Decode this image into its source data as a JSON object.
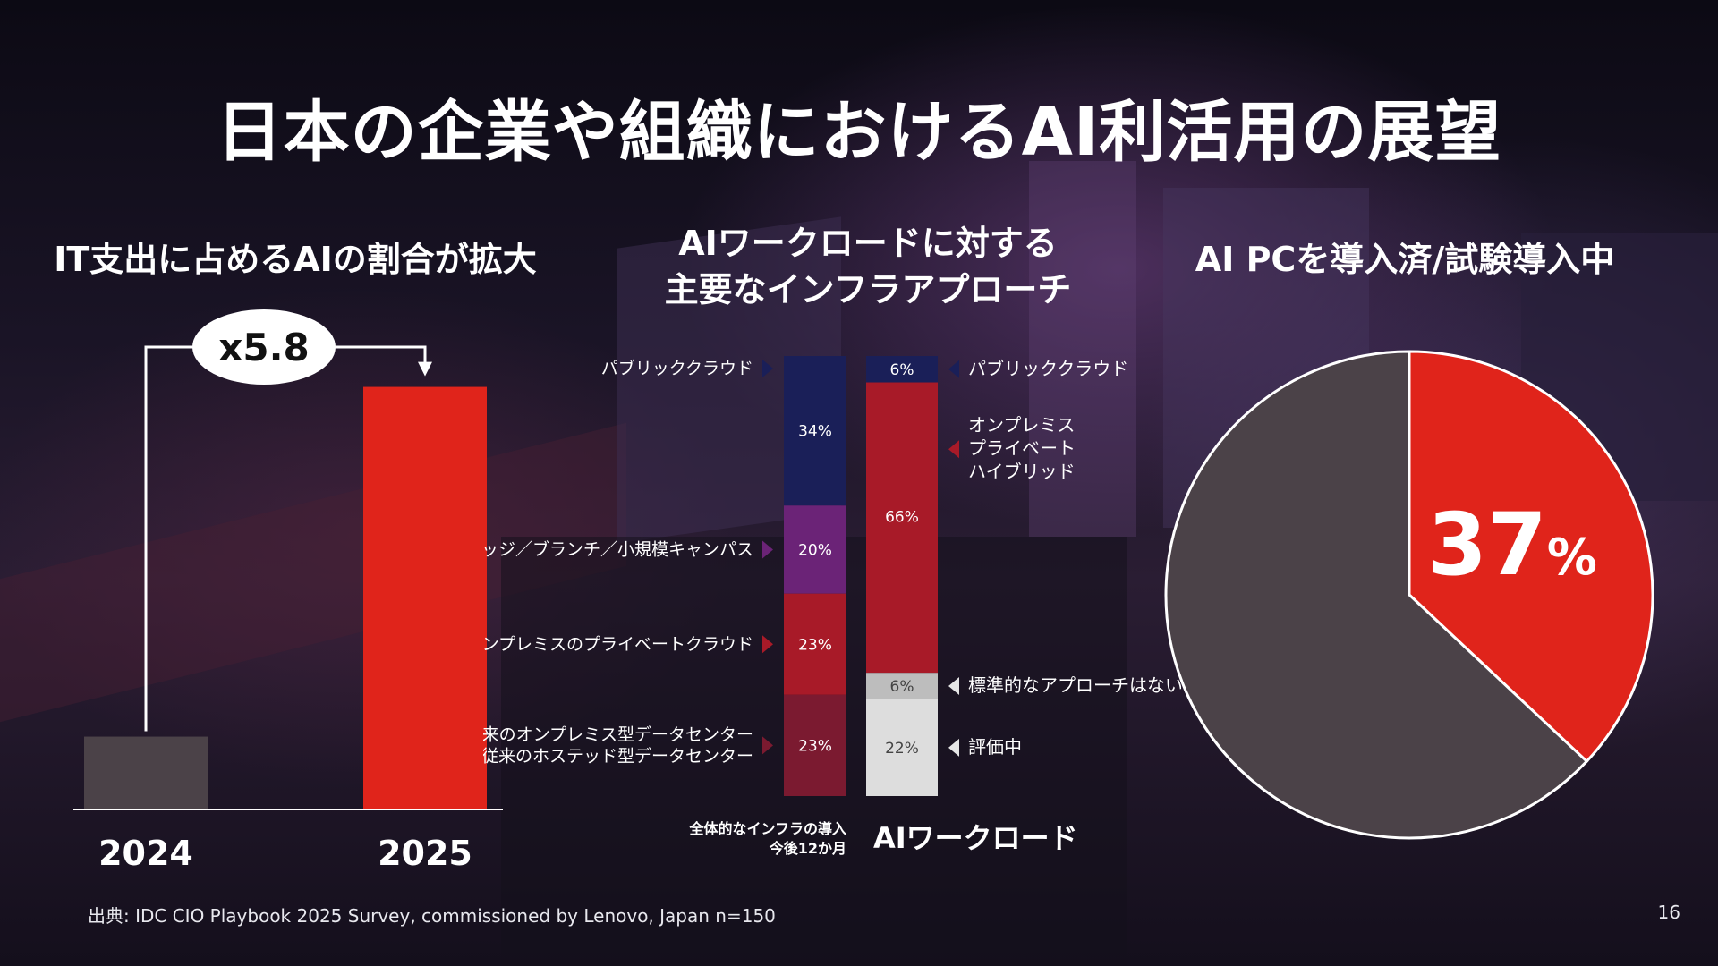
{
  "title": "日本の企業や組織におけるAI利活用の展望",
  "colors": {
    "red": "#e0241b",
    "gray": "#4b4248",
    "navy": "#1a1f58",
    "purple": "#6b2377",
    "crimson": "#a81a28",
    "maroon": "#7b1a30",
    "light_gray": "#bdbdbd",
    "lighter_gray": "#dddddd"
  },
  "chart_data": [
    {
      "type": "bar",
      "title": "IT支出に占めるAIの割合が拡大",
      "categories": [
        "2024",
        "2025"
      ],
      "values": [
        1,
        5.8
      ],
      "annotation": "x5.8",
      "ylim": [
        0,
        6.2
      ]
    },
    {
      "type": "bar",
      "title": "AIワークロードに対する主要なインフラアプローチ",
      "stacked": true,
      "categories": [
        "全体的なインフラの導入 今後12か月",
        "AIワークロード"
      ],
      "category_labels": {
        "left_line1": "全体的なインフラの導入",
        "left_line2": "今後12か月",
        "right": "AIワークロード"
      },
      "series_left": [
        {
          "name": "パブリッククラウド",
          "value": 34,
          "label": "34%",
          "color": "#1a1f58"
        },
        {
          "name": "エッジ／ブランチ／小規模キャンパス",
          "value": 20,
          "label": "20%",
          "color": "#6b2377"
        },
        {
          "name": "オンプレミスのプライベートクラウド",
          "value": 23,
          "label": "23%",
          "color": "#a81a28"
        },
        {
          "name": "従来のオンプレミス型データセンター 従来のホステッド型データセンター",
          "value": 23,
          "label": "23%",
          "color": "#7b1a30",
          "name_lines": [
            "従来のオンプレミス型データセンター",
            "従来のホステッド型データセンター"
          ]
        }
      ],
      "series_right": [
        {
          "name": "パブリッククラウド",
          "value": 6,
          "label": "6%",
          "color": "#1a1f58",
          "name_lines": [
            "パブリッククラウド"
          ]
        },
        {
          "name": "オンプレミス プライベート ハイブリッド",
          "value": 66,
          "label": "66%",
          "color": "#a81a28",
          "name_lines": [
            "オンプレミス",
            "プライベート",
            "ハイブリッド"
          ]
        },
        {
          "name": "標準的なアプローチはない",
          "value": 6,
          "label": "6%",
          "color": "#bdbdbd",
          "name_lines": [
            "標準的なアプローチはない"
          ]
        },
        {
          "name": "評価中",
          "value": 22,
          "label": "22%",
          "color": "#dddddd",
          "name_lines": [
            "評価中"
          ]
        }
      ]
    },
    {
      "type": "pie",
      "title": "AI PCを導入済/試験導入中",
      "values": [
        37,
        63
      ],
      "colors": [
        "#e0241b",
        "#4b4248"
      ],
      "label_number": "37",
      "label_unit": "%"
    }
  ],
  "footer": {
    "source": "出典: IDC CIO Playbook 2025 Survey, commissioned by Lenovo, Japan n=150",
    "page_number": "16"
  }
}
